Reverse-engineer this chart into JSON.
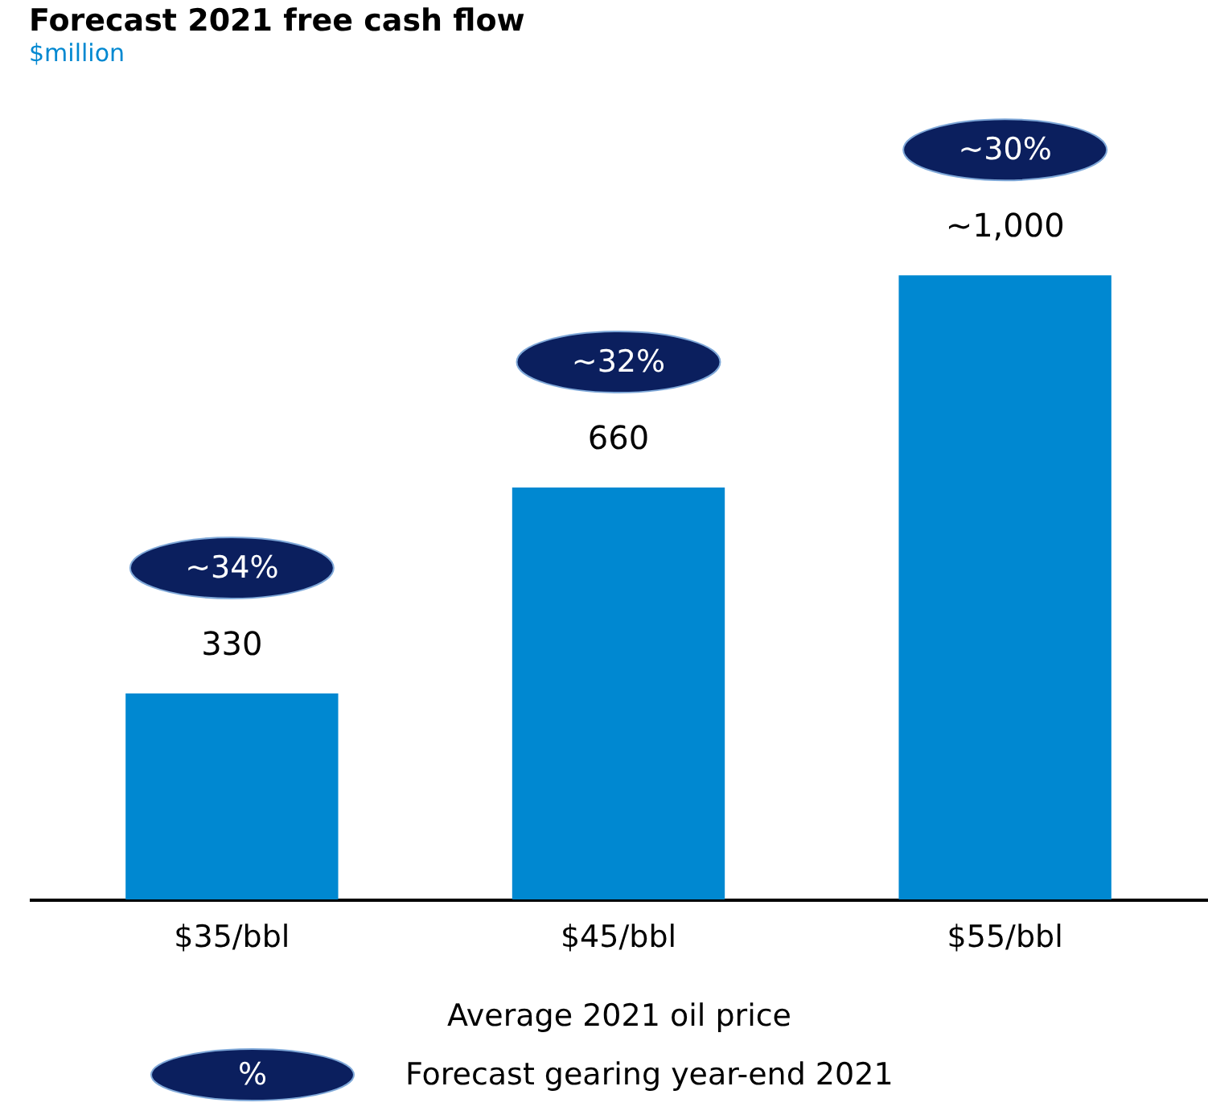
{
  "chart_data": {
    "type": "bar",
    "title": "Forecast 2021 free cash flow",
    "subtitle": "$million",
    "xlabel": "Average 2021 oil price",
    "categories": [
      "$35/bbl",
      "$45/bbl",
      "$55/bbl"
    ],
    "values": [
      330,
      660,
      1000
    ],
    "value_labels": [
      "330",
      "660",
      "~1,000"
    ],
    "color": "#0088d1",
    "annotations": [
      "~34%",
      "~32%",
      "~30%",
      "%",
      "Forecast gearing year-end 2021"
    ]
  }
}
